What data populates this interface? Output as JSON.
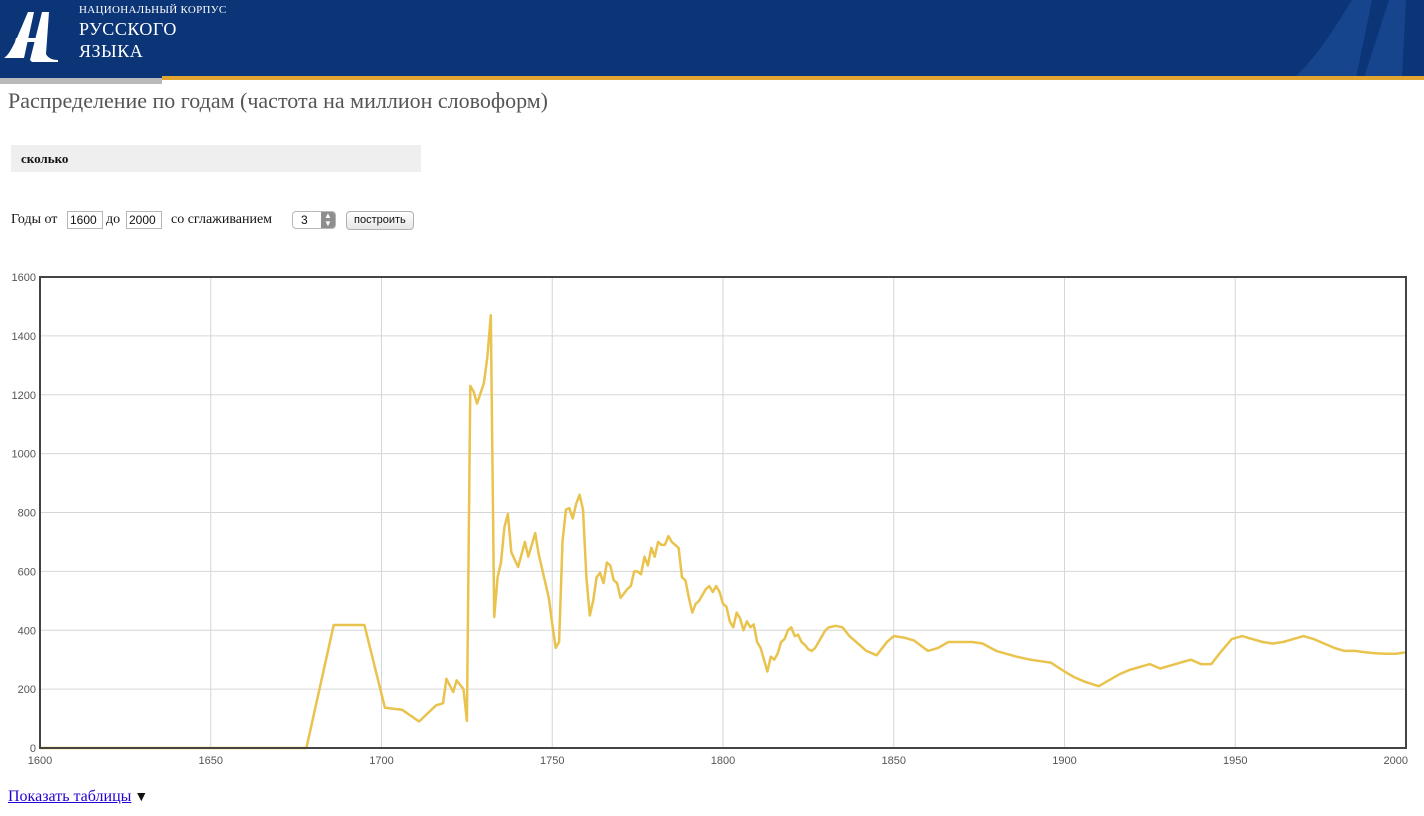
{
  "header": {
    "brand_small": "НАЦИОНАЛЬНЫЙ КОРПУС",
    "brand_line2": "РУССКОГО",
    "brand_line3": "ЯЗЫКА",
    "colors": {
      "background": "#0c3577",
      "accent": "#e3a531"
    }
  },
  "page": {
    "title": "Распределение по годам (частота на миллион словоформ)"
  },
  "query": {
    "word": "сколько"
  },
  "controls": {
    "years_from_label": "Годы от",
    "year_from": "1600",
    "to_label": "до",
    "year_to": "2000",
    "smoothing_label": "со сглаживанием",
    "smoothing_value": "3",
    "build_button": "построить"
  },
  "chart_data": {
    "type": "line",
    "title": "",
    "xlabel": "",
    "ylabel": "",
    "xlim": [
      1600,
      2000
    ],
    "ylim": [
      0,
      1600
    ],
    "x_ticks": [
      "1600",
      "1650",
      "1700",
      "1750",
      "1800",
      "1850",
      "1900",
      "1950",
      "2000"
    ],
    "y_ticks": [
      "0",
      "200",
      "400",
      "600",
      "800",
      "1000",
      "1200",
      "1400",
      "1600"
    ],
    "grid": true,
    "series": [
      {
        "color": "#e9c34d",
        "points": [
          [
            1600,
            0
          ],
          [
            1678,
            0
          ],
          [
            1686,
            418
          ],
          [
            1695,
            418
          ],
          [
            1701,
            137
          ],
          [
            1706,
            130
          ],
          [
            1711,
            90
          ],
          [
            1713,
            112
          ],
          [
            1716,
            145
          ],
          [
            1718,
            152
          ],
          [
            1719,
            235
          ],
          [
            1721,
            190
          ],
          [
            1722,
            230
          ],
          [
            1724,
            200
          ],
          [
            1725,
            92
          ],
          [
            1726,
            1230
          ],
          [
            1727,
            1210
          ],
          [
            1728,
            1170
          ],
          [
            1730,
            1240
          ],
          [
            1731,
            1330
          ],
          [
            1732,
            1470
          ],
          [
            1733,
            445
          ],
          [
            1734,
            580
          ],
          [
            1735,
            630
          ],
          [
            1736,
            750
          ],
          [
            1737,
            795
          ],
          [
            1738,
            665
          ],
          [
            1740,
            615
          ],
          [
            1742,
            700
          ],
          [
            1743,
            650
          ],
          [
            1745,
            730
          ],
          [
            1746,
            660
          ],
          [
            1748,
            560
          ],
          [
            1749,
            510
          ],
          [
            1750,
            420
          ],
          [
            1751,
            340
          ],
          [
            1752,
            360
          ],
          [
            1753,
            700
          ],
          [
            1754,
            810
          ],
          [
            1755,
            815
          ],
          [
            1756,
            780
          ],
          [
            1757,
            830
          ],
          [
            1758,
            860
          ],
          [
            1759,
            810
          ],
          [
            1760,
            580
          ],
          [
            1761,
            450
          ],
          [
            1762,
            500
          ],
          [
            1763,
            580
          ],
          [
            1764,
            595
          ],
          [
            1765,
            560
          ],
          [
            1766,
            630
          ],
          [
            1767,
            620
          ],
          [
            1768,
            570
          ],
          [
            1769,
            560
          ],
          [
            1770,
            510
          ],
          [
            1771,
            525
          ],
          [
            1772,
            540
          ],
          [
            1773,
            550
          ],
          [
            1774,
            600
          ],
          [
            1775,
            600
          ],
          [
            1776,
            590
          ],
          [
            1777,
            650
          ],
          [
            1778,
            620
          ],
          [
            1779,
            680
          ],
          [
            1780,
            650
          ],
          [
            1781,
            700
          ],
          [
            1782,
            690
          ],
          [
            1783,
            690
          ],
          [
            1784,
            720
          ],
          [
            1785,
            700
          ],
          [
            1786,
            690
          ],
          [
            1787,
            680
          ],
          [
            1788,
            580
          ],
          [
            1789,
            570
          ],
          [
            1790,
            510
          ],
          [
            1791,
            460
          ],
          [
            1792,
            490
          ],
          [
            1793,
            500
          ],
          [
            1794,
            520
          ],
          [
            1795,
            540
          ],
          [
            1796,
            550
          ],
          [
            1797,
            530
          ],
          [
            1798,
            550
          ],
          [
            1799,
            530
          ],
          [
            1800,
            490
          ],
          [
            1801,
            480
          ],
          [
            1802,
            430
          ],
          [
            1803,
            410
          ],
          [
            1804,
            460
          ],
          [
            1805,
            440
          ],
          [
            1806,
            400
          ],
          [
            1807,
            430
          ],
          [
            1808,
            410
          ],
          [
            1809,
            420
          ],
          [
            1810,
            360
          ],
          [
            1811,
            340
          ],
          [
            1812,
            300
          ],
          [
            1813,
            260
          ],
          [
            1814,
            310
          ],
          [
            1815,
            300
          ],
          [
            1816,
            320
          ],
          [
            1817,
            360
          ],
          [
            1818,
            370
          ],
          [
            1819,
            400
          ],
          [
            1820,
            410
          ],
          [
            1821,
            380
          ],
          [
            1822,
            385
          ],
          [
            1823,
            360
          ],
          [
            1824,
            350
          ],
          [
            1825,
            335
          ],
          [
            1826,
            330
          ],
          [
            1827,
            340
          ],
          [
            1828,
            360
          ],
          [
            1829,
            380
          ],
          [
            1830,
            400
          ],
          [
            1831,
            410
          ],
          [
            1833,
            415
          ],
          [
            1835,
            410
          ],
          [
            1837,
            380
          ],
          [
            1839,
            360
          ],
          [
            1842,
            330
          ],
          [
            1845,
            315
          ],
          [
            1848,
            360
          ],
          [
            1850,
            380
          ],
          [
            1853,
            375
          ],
          [
            1856,
            365
          ],
          [
            1860,
            330
          ],
          [
            1863,
            340
          ],
          [
            1866,
            360
          ],
          [
            1870,
            360
          ],
          [
            1873,
            360
          ],
          [
            1876,
            355
          ],
          [
            1880,
            330
          ],
          [
            1883,
            320
          ],
          [
            1886,
            310
          ],
          [
            1890,
            300
          ],
          [
            1893,
            295
          ],
          [
            1896,
            290
          ],
          [
            1900,
            260
          ],
          [
            1903,
            240
          ],
          [
            1906,
            225
          ],
          [
            1910,
            210
          ],
          [
            1913,
            230
          ],
          [
            1916,
            250
          ],
          [
            1919,
            265
          ],
          [
            1922,
            275
          ],
          [
            1925,
            285
          ],
          [
            1928,
            270
          ],
          [
            1931,
            280
          ],
          [
            1934,
            290
          ],
          [
            1937,
            300
          ],
          [
            1940,
            285
          ],
          [
            1943,
            285
          ],
          [
            1946,
            330
          ],
          [
            1949,
            370
          ],
          [
            1952,
            380
          ],
          [
            1955,
            370
          ],
          [
            1958,
            360
          ],
          [
            1961,
            355
          ],
          [
            1964,
            360
          ],
          [
            1967,
            370
          ],
          [
            1970,
            380
          ],
          [
            1973,
            370
          ],
          [
            1976,
            355
          ],
          [
            1979,
            340
          ],
          [
            1982,
            330
          ],
          [
            1985,
            330
          ],
          [
            1988,
            325
          ],
          [
            1991,
            322
          ],
          [
            1994,
            320
          ],
          [
            1997,
            320
          ],
          [
            2000,
            325
          ]
        ]
      }
    ]
  },
  "footer": {
    "show_tables_link": "Показать таблицы",
    "toggle_symbol": "▼"
  }
}
